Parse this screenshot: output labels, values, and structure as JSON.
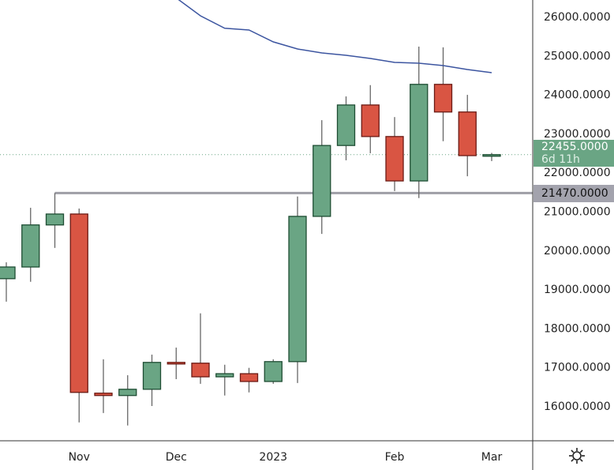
{
  "chart_data": {
    "type": "candlestick",
    "title": "",
    "x_tick_labels": [
      {
        "label": "Nov",
        "index": 3
      },
      {
        "label": "Dec",
        "index": 7
      },
      {
        "label": "2023",
        "index": 11
      },
      {
        "label": "Feb",
        "index": 16
      },
      {
        "label": "Mar",
        "index": 20
      }
    ],
    "y_ticks": [
      "16000.0000",
      "17000.0000",
      "18000.0000",
      "19000.0000",
      "20000.0000",
      "21000.0000",
      "22000.0000",
      "23000.0000",
      "24000.0000",
      "25000.0000",
      "26000.0000"
    ],
    "ylim": [
      15100,
      26400
    ],
    "candles": [
      {
        "o": 19270,
        "h": 19690,
        "l": 18680,
        "c": 19570
      },
      {
        "o": 19570,
        "h": 21090,
        "l": 19190,
        "c": 20650
      },
      {
        "o": 20650,
        "h": 21470,
        "l": 20060,
        "c": 20930
      },
      {
        "o": 20930,
        "h": 21070,
        "l": 15580,
        "c": 16350
      },
      {
        "o": 16330,
        "h": 17200,
        "l": 15820,
        "c": 16270
      },
      {
        "o": 16270,
        "h": 16790,
        "l": 15500,
        "c": 16430
      },
      {
        "o": 16430,
        "h": 17320,
        "l": 16000,
        "c": 17120
      },
      {
        "o": 17120,
        "h": 17500,
        "l": 16690,
        "c": 17100
      },
      {
        "o": 17100,
        "h": 18380,
        "l": 16570,
        "c": 16750
      },
      {
        "o": 16750,
        "h": 17060,
        "l": 16270,
        "c": 16830
      },
      {
        "o": 16830,
        "h": 16980,
        "l": 16350,
        "c": 16630
      },
      {
        "o": 16630,
        "h": 17200,
        "l": 16570,
        "c": 17140
      },
      {
        "o": 17140,
        "h": 21380,
        "l": 16590,
        "c": 20870
      },
      {
        "o": 20870,
        "h": 23340,
        "l": 20420,
        "c": 22690
      },
      {
        "o": 22690,
        "h": 23950,
        "l": 22310,
        "c": 23730
      },
      {
        "o": 23730,
        "h": 24240,
        "l": 22490,
        "c": 22920
      },
      {
        "o": 22920,
        "h": 23420,
        "l": 21520,
        "c": 21780
      },
      {
        "o": 21780,
        "h": 25230,
        "l": 21340,
        "c": 24260
      },
      {
        "o": 24260,
        "h": 25210,
        "l": 22800,
        "c": 23550
      },
      {
        "o": 23550,
        "h": 23990,
        "l": 21900,
        "c": 22430
      },
      {
        "o": 22430,
        "h": 22500,
        "l": 22290,
        "c": 22455
      }
    ],
    "moving_average": [
      null,
      null,
      null,
      null,
      null,
      null,
      null,
      26480,
      26020,
      25700,
      25655,
      25351,
      25168,
      25067,
      25006,
      24925,
      24824,
      24803,
      24743,
      24641,
      24560
    ],
    "horizontal_level": {
      "value": 21470,
      "label": "21470.0000",
      "start_index": 2
    },
    "last_price": {
      "value": 22455,
      "label": "22455.0000",
      "countdown": "6d 11h"
    },
    "colors": {
      "up": "#6aa584",
      "down": "#d95543",
      "up_border": "#1e4d33",
      "down_border": "#6b1a14",
      "ma": "#3c55a0",
      "level": "#9e9ea6",
      "price_tag": "#6aa584",
      "level_tag": "#a3a3ad"
    }
  },
  "toolbar": {
    "settings_icon": "gear-icon"
  }
}
